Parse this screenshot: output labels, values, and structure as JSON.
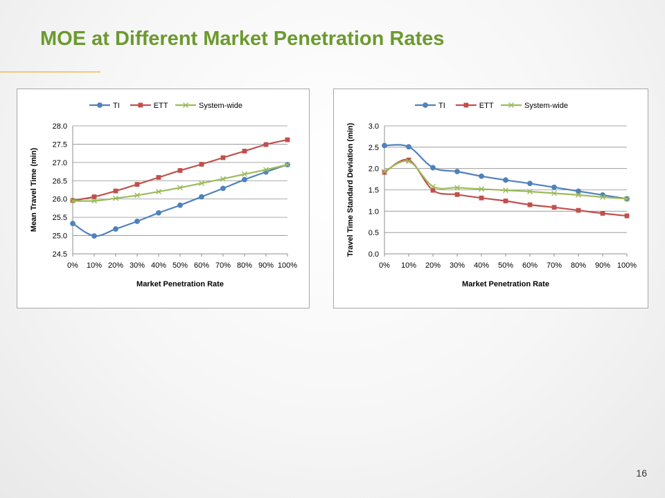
{
  "slide": {
    "title": "MOE at Different Market Penetration Rates",
    "page_number": "16"
  },
  "colors": {
    "title": "#6b9a2e",
    "TI": "#4f81bd",
    "ETT": "#c0504d",
    "System-wide": "#9bbb59"
  },
  "chart_data": [
    {
      "type": "line",
      "title": "",
      "xlabel": "Market Penetration Rate",
      "ylabel": "Mean Travel Time (min)",
      "categories": [
        "0%",
        "10%",
        "20%",
        "30%",
        "40%",
        "50%",
        "60%",
        "70%",
        "80%",
        "90%",
        "100%"
      ],
      "ylim": [
        24.5,
        28.0
      ],
      "yticks": [
        "24.5",
        "25.0",
        "25.5",
        "26.0",
        "26.5",
        "27.0",
        "27.5",
        "28.0"
      ],
      "grid": "horizontal",
      "legend": "top",
      "series": [
        {
          "name": "TI",
          "marker": "circle",
          "values": [
            25.33,
            24.99,
            25.18,
            25.39,
            25.62,
            25.83,
            26.06,
            26.29,
            26.53,
            26.74,
            26.94
          ]
        },
        {
          "name": "ETT",
          "marker": "square",
          "values": [
            25.96,
            26.06,
            26.22,
            26.4,
            26.59,
            26.78,
            26.95,
            27.13,
            27.31,
            27.49,
            27.62
          ]
        },
        {
          "name": "System-wide",
          "marker": "x",
          "values": [
            25.95,
            25.95,
            26.02,
            26.1,
            26.2,
            26.31,
            26.43,
            26.55,
            26.68,
            26.8,
            26.94
          ]
        }
      ]
    },
    {
      "type": "line",
      "title": "",
      "xlabel": "Market Penetration Rate",
      "ylabel": "Travel Time Standard Deviation (min)",
      "categories": [
        "0%",
        "10%",
        "20%",
        "30%",
        "40%",
        "50%",
        "60%",
        "70%",
        "80%",
        "90%",
        "100%"
      ],
      "ylim": [
        0.0,
        3.0
      ],
      "yticks": [
        "0.0",
        "0.5",
        "1.0",
        "1.5",
        "2.0",
        "2.5",
        "3.0"
      ],
      "grid": "horizontal",
      "legend": "top",
      "series": [
        {
          "name": "TI",
          "marker": "circle",
          "values": [
            2.54,
            2.51,
            2.02,
            1.93,
            1.82,
            1.73,
            1.65,
            1.56,
            1.47,
            1.38,
            1.29
          ]
        },
        {
          "name": "ETT",
          "marker": "square",
          "values": [
            1.91,
            2.2,
            1.49,
            1.39,
            1.31,
            1.24,
            1.15,
            1.09,
            1.02,
            0.95,
            0.89
          ]
        },
        {
          "name": "System-wide",
          "marker": "x",
          "values": [
            1.93,
            2.17,
            1.58,
            1.55,
            1.52,
            1.49,
            1.46,
            1.42,
            1.38,
            1.33,
            1.29
          ]
        }
      ]
    }
  ]
}
